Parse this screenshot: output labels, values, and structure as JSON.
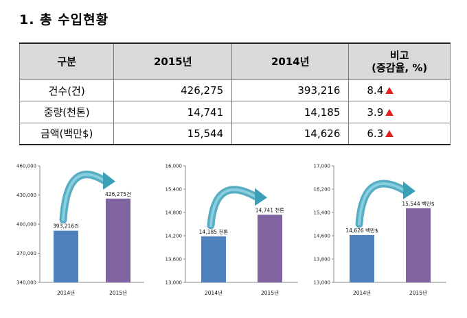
{
  "title": "1. 총 수입현황",
  "table": {
    "headers": [
      "구분",
      "2015년",
      "2014년",
      "비고",
      "(증감율, %)"
    ],
    "rows": [
      {
        "label": "건수(건)",
        "y2015": "426,275",
        "y2014": "393,216",
        "change": "8.4"
      },
      {
        "label": "중량(천톤)",
        "y2015": "14,741",
        "y2014": "14,185",
        "change": "3.9"
      },
      {
        "label": "금액(백만$)",
        "y2015": "15,544",
        "y2014": "14,626",
        "change": "6.3"
      }
    ],
    "up_color": "#e0201b"
  },
  "chart_data": [
    {
      "type": "bar",
      "categories": [
        "2014년",
        "2015년"
      ],
      "values": [
        393216,
        426275
      ],
      "data_labels": [
        "393,216건",
        "426,275건"
      ],
      "ylim": [
        340000,
        460000
      ],
      "yticks": [
        "340,000",
        "370,000",
        "400,000",
        "430,000",
        "460,000"
      ],
      "colors": [
        "#4f81bd",
        "#8064a2"
      ]
    },
    {
      "type": "bar",
      "categories": [
        "2014년",
        "2015년"
      ],
      "values": [
        14185,
        14741
      ],
      "data_labels": [
        "14,185 천톤",
        "14,741 천톤"
      ],
      "ylim": [
        13000,
        16000
      ],
      "yticks": [
        "13,000",
        "13,600",
        "14,200",
        "14,800",
        "15,400",
        "16,000"
      ],
      "colors": [
        "#4f81bd",
        "#8064a2"
      ]
    },
    {
      "type": "bar",
      "categories": [
        "2014년",
        "2015년"
      ],
      "values": [
        14626,
        15544
      ],
      "data_labels": [
        "14,626 백만$",
        "15,544 백만$"
      ],
      "ylim": [
        13000,
        17000
      ],
      "yticks": [
        "13,000",
        "13,800",
        "14,600",
        "15,400",
        "16,200",
        "17,000"
      ],
      "colors": [
        "#4f81bd",
        "#8064a2"
      ]
    }
  ]
}
